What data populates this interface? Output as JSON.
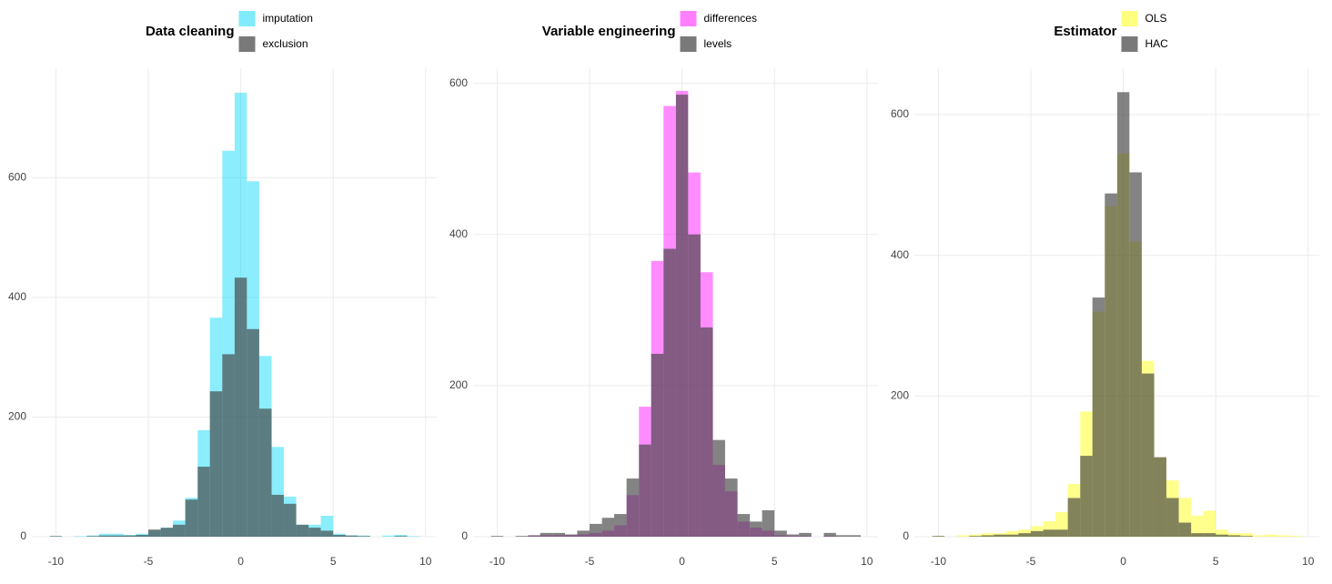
{
  "chart_data": [
    {
      "type": "histogram",
      "legend_title": "Data cleaning",
      "bins": [
        -10.33,
        -9.67,
        -9,
        -8.33,
        -7.67,
        -7,
        -6.33,
        -5.67,
        -5,
        -4.33,
        -3.67,
        -3,
        -2.33,
        -1.67,
        -1,
        -0.33,
        0.33,
        1,
        1.67,
        2.33,
        3,
        3.67,
        4.33,
        5,
        5.67,
        6.33,
        7,
        7.67,
        8.33,
        9,
        9.67
      ],
      "series": [
        {
          "name": "imputation",
          "color": "#00d8f8",
          "values": [
            1,
            0,
            1,
            2,
            5,
            5,
            3,
            5,
            10,
            15,
            27,
            65,
            178,
            366,
            645,
            742,
            594,
            302,
            150,
            67,
            20,
            20,
            35,
            5,
            2,
            2,
            0,
            2,
            3,
            1
          ]
        },
        {
          "name": "exclusion",
          "color": "#404040",
          "values": [
            1,
            0,
            0,
            1,
            2,
            2,
            2,
            3,
            12,
            15,
            20,
            62,
            117,
            243,
            305,
            433,
            347,
            214,
            70,
            55,
            20,
            15,
            10,
            3,
            2,
            1,
            0,
            0,
            1,
            0
          ]
        }
      ],
      "xlim": [
        -11.3,
        10.6
      ],
      "ylim": [
        0,
        783
      ],
      "xticks": [
        -10,
        -5,
        0,
        5,
        10
      ],
      "yticks": [
        0,
        200,
        400,
        600
      ],
      "grid": true
    },
    {
      "type": "histogram",
      "legend_title": "Variable engineering",
      "bins": [
        -10.33,
        -9.67,
        -9,
        -8.33,
        -7.67,
        -7,
        -6.33,
        -5.67,
        -5,
        -4.33,
        -3.67,
        -3,
        -2.33,
        -1.67,
        -1,
        -0.33,
        0.33,
        1,
        1.67,
        2.33,
        3,
        3.67,
        4.33,
        5,
        5.67,
        6.33,
        7,
        7.67,
        8.33,
        9,
        9.67
      ],
      "series": [
        {
          "name": "differences",
          "color": "#ff00ff",
          "values": [
            0,
            0,
            0,
            1,
            2,
            2,
            2,
            3,
            5,
            8,
            15,
            55,
            172,
            365,
            570,
            590,
            482,
            350,
            95,
            60,
            20,
            12,
            8,
            2,
            1,
            1,
            0,
            1,
            0,
            0
          ]
        },
        {
          "name": "levels",
          "color": "#404040",
          "values": [
            1,
            0,
            1,
            2,
            5,
            5,
            3,
            8,
            17,
            25,
            30,
            77,
            122,
            242,
            381,
            585,
            400,
            277,
            128,
            77,
            30,
            20,
            35,
            8,
            3,
            5,
            0,
            5,
            2,
            2
          ]
        }
      ],
      "xlim": [
        -11.3,
        10.6
      ],
      "ylim": [
        0,
        620
      ],
      "xticks": [
        -10,
        -5,
        0,
        5,
        10
      ],
      "yticks": [
        0,
        200,
        400,
        600
      ],
      "grid": true
    },
    {
      "type": "histogram",
      "legend_title": "Estimator",
      "bins": [
        -10.33,
        -9.67,
        -9,
        -8.33,
        -7.67,
        -7,
        -6.33,
        -5.67,
        -5,
        -4.33,
        -3.67,
        -3,
        -2.33,
        -1.67,
        -1,
        -0.33,
        0.33,
        1,
        1.67,
        2.33,
        3,
        3.67,
        4.33,
        5,
        5.67,
        6.33,
        7,
        7.67,
        8.33,
        9,
        9.67
      ],
      "series": [
        {
          "name": "OLS",
          "color": "#ffff00",
          "values": [
            1,
            0,
            2,
            3,
            5,
            5,
            8,
            10,
            15,
            22,
            35,
            75,
            178,
            320,
            470,
            545,
            420,
            250,
            113,
            80,
            55,
            30,
            37,
            10,
            5,
            5,
            2,
            3,
            2,
            1
          ]
        },
        {
          "name": "HAC",
          "color": "#404040",
          "values": [
            1,
            0,
            0,
            1,
            2,
            3,
            3,
            5,
            8,
            10,
            10,
            55,
            115,
            340,
            488,
            632,
            518,
            232,
            113,
            55,
            20,
            5,
            5,
            3,
            2,
            1,
            0,
            0,
            0,
            0
          ]
        }
      ],
      "xlim": [
        -11.3,
        10.6
      ],
      "ylim": [
        0,
        666
      ],
      "xticks": [
        -10,
        -5,
        0,
        5,
        10
      ],
      "yticks": [
        0,
        200,
        400,
        600
      ],
      "grid": true
    }
  ]
}
